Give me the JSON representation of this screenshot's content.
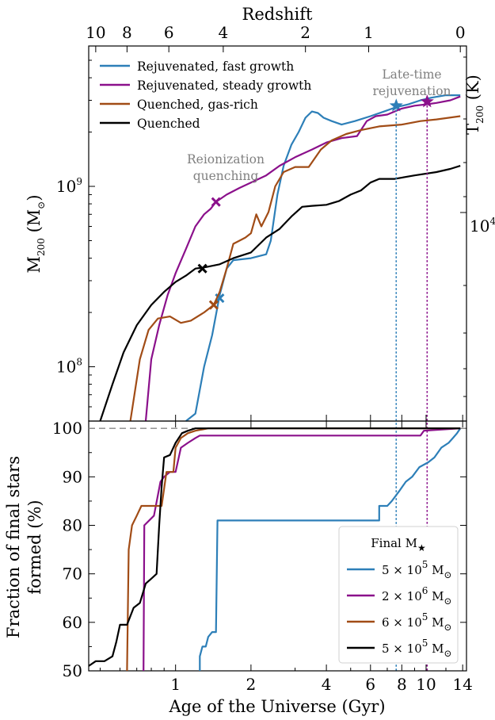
{
  "chart_data": [
    {
      "type": "line",
      "panel": "top",
      "top_axis_label": "Redshift",
      "top_ticks": [
        "10",
        "8",
        "6",
        "4",
        "2",
        "1",
        "0"
      ],
      "ylabel_main": "M",
      "ylabel_sub": "200",
      "ylabel_unit_open": " (M",
      "ylabel_unit_sub": "⊙",
      "ylabel_unit_close": ")",
      "ylabel_right_main": "T",
      "ylabel_right_sub": "200",
      "ylabel_right_unit": " (K)",
      "y_log": true,
      "ylim": [
        50000000.0,
        6000000000.0
      ],
      "y_ticks": [
        {
          "base": "10",
          "exp": "8"
        },
        {
          "base": "10",
          "exp": "9"
        }
      ],
      "right_ticks": [
        {
          "base": "10",
          "exp": "4"
        }
      ],
      "xlim": [
        0.45,
        14.5
      ],
      "x_log": true,
      "annotations": [
        "Reionization",
        "quenching",
        "Late-time",
        "rejuvenation"
      ],
      "series": [
        {
          "name": "Rejuvenated, fast growth",
          "color": "#2d7fb8",
          "points": [
            [
              1.1,
              50000000.0
            ],
            [
              1.2,
              55000000.0
            ],
            [
              1.3,
              100000000.0
            ],
            [
              1.4,
              150000000.0
            ],
            [
              1.5,
              250000000.0
            ],
            [
              1.6,
              350000000.0
            ],
            [
              1.7,
              390000000.0
            ],
            [
              2.0,
              400000000.0
            ],
            [
              2.3,
              420000000.0
            ],
            [
              2.4,
              500000000.0
            ],
            [
              2.55,
              900000000.0
            ],
            [
              2.7,
              1300000000.0
            ],
            [
              2.9,
              1700000000.0
            ],
            [
              3.1,
              2000000000.0
            ],
            [
              3.3,
              2400000000.0
            ],
            [
              3.5,
              2600000000.0
            ],
            [
              3.7,
              2550000000.0
            ],
            [
              3.9,
              2400000000.0
            ],
            [
              4.2,
              2300000000.0
            ],
            [
              4.6,
              2200000000.0
            ],
            [
              5.2,
              2300000000.0
            ],
            [
              6.0,
              2450000000.0
            ],
            [
              6.8,
              2600000000.0
            ],
            [
              7.6,
              2750000000.0
            ],
            [
              8.5,
              2850000000.0
            ],
            [
              9.5,
              3000000000.0
            ],
            [
              10.5,
              3100000000.0
            ],
            [
              12,
              3200000000.0
            ],
            [
              13.7,
              3200000000.0
            ]
          ],
          "quench_marker": [
            1.5,
            240000000.0
          ],
          "rejuv_marker": [
            7.6,
            2800000000.0
          ]
        },
        {
          "name": "Rejuvenated, steady growth",
          "color": "#8b108b",
          "points": [
            [
              0.76,
              50000000.0
            ],
            [
              0.8,
              110000000.0
            ],
            [
              0.86,
              170000000.0
            ],
            [
              0.93,
              250000000.0
            ],
            [
              1.0,
              330000000.0
            ],
            [
              1.1,
              450000000.0
            ],
            [
              1.2,
              600000000.0
            ],
            [
              1.3,
              700000000.0
            ],
            [
              1.38,
              750000000.0
            ],
            [
              1.45,
              820000000.0
            ],
            [
              1.6,
              900000000.0
            ],
            [
              1.8,
              980000000.0
            ],
            [
              2.0,
              1050000000.0
            ],
            [
              2.3,
              1150000000.0
            ],
            [
              2.6,
              1300000000.0
            ],
            [
              3.0,
              1450000000.0
            ],
            [
              3.5,
              1600000000.0
            ],
            [
              4.0,
              1750000000.0
            ],
            [
              4.6,
              1850000000.0
            ],
            [
              5.3,
              1900000000.0
            ],
            [
              5.8,
              2300000000.0
            ],
            [
              6.3,
              2450000000.0
            ],
            [
              7.0,
              2500000000.0
            ],
            [
              8.0,
              2700000000.0
            ],
            [
              9.0,
              2800000000.0
            ],
            [
              10.0,
              2850000000.0
            ],
            [
              11.0,
              2900000000.0
            ],
            [
              12.5,
              3000000000.0
            ],
            [
              13.7,
              3150000000.0
            ]
          ],
          "quench_marker": [
            1.45,
            820000000.0
          ],
          "rejuv_marker": [
            10.1,
            2950000000.0
          ]
        },
        {
          "name": "Quenched, gas-rich",
          "color": "#a14c16",
          "points": [
            [
              0.66,
              50000000.0
            ],
            [
              0.72,
              110000000.0
            ],
            [
              0.78,
              160000000.0
            ],
            [
              0.85,
              185000000.0
            ],
            [
              0.95,
              190000000.0
            ],
            [
              1.05,
              175000000.0
            ],
            [
              1.15,
              180000000.0
            ],
            [
              1.3,
              200000000.0
            ],
            [
              1.42,
              220000000.0
            ],
            [
              1.5,
              260000000.0
            ],
            [
              1.6,
              350000000.0
            ],
            [
              1.7,
              480000000.0
            ],
            [
              1.8,
              500000000.0
            ],
            [
              1.9,
              520000000.0
            ],
            [
              2.0,
              550000000.0
            ],
            [
              2.1,
              700000000.0
            ],
            [
              2.2,
              600000000.0
            ],
            [
              2.35,
              720000000.0
            ],
            [
              2.5,
              1000000000.0
            ],
            [
              2.7,
              1200000000.0
            ],
            [
              3.0,
              1280000000.0
            ],
            [
              3.4,
              1280000000.0
            ],
            [
              3.8,
              1600000000.0
            ],
            [
              4.2,
              1800000000.0
            ],
            [
              4.8,
              1950000000.0
            ],
            [
              5.5,
              2050000000.0
            ],
            [
              6.5,
              2150000000.0
            ],
            [
              8.0,
              2200000000.0
            ],
            [
              9.5,
              2300000000.0
            ],
            [
              11,
              2350000000.0
            ],
            [
              13.7,
              2450000000.0
            ]
          ],
          "quench_marker": [
            1.42,
            220000000.0
          ]
        },
        {
          "name": "Quenched",
          "color": "#000000",
          "points": [
            [
              0.5,
              50000000.0
            ],
            [
              0.56,
              80000000.0
            ],
            [
              0.62,
              120000000.0
            ],
            [
              0.7,
              170000000.0
            ],
            [
              0.8,
              220000000.0
            ],
            [
              0.9,
              260000000.0
            ],
            [
              1.0,
              295000000.0
            ],
            [
              1.1,
              320000000.0
            ],
            [
              1.2,
              350000000.0
            ],
            [
              1.3,
              355000000.0
            ],
            [
              1.5,
              370000000.0
            ],
            [
              1.7,
              400000000.0
            ],
            [
              2.0,
              430000000.0
            ],
            [
              2.3,
              520000000.0
            ],
            [
              2.6,
              580000000.0
            ],
            [
              2.9,
              680000000.0
            ],
            [
              3.2,
              770000000.0
            ],
            [
              3.5,
              780000000.0
            ],
            [
              4.0,
              790000000.0
            ],
            [
              4.5,
              830000000.0
            ],
            [
              5.0,
              900000000.0
            ],
            [
              5.5,
              950000000.0
            ],
            [
              6.0,
              1050000000.0
            ],
            [
              6.5,
              1100000000.0
            ],
            [
              7.5,
              1100000000.0
            ],
            [
              9,
              1150000000.0
            ],
            [
              11,
              1200000000.0
            ],
            [
              12.5,
              1250000000.0
            ],
            [
              13.7,
              1300000000.0
            ]
          ],
          "quench_marker": [
            1.28,
            350000000.0
          ]
        }
      ]
    },
    {
      "type": "line",
      "panel": "bottom",
      "xlabel": "Age of the Universe (Gyr)",
      "ylabel_line1": "Fraction of final stars",
      "ylabel_line2": "formed (%)",
      "x_log": true,
      "xlim": [
        0.45,
        14.5
      ],
      "ylim": [
        50,
        101.5
      ],
      "x_ticks": [
        "1",
        "2",
        "4",
        "6",
        "8",
        "10",
        "14"
      ],
      "y_ticks": [
        "50",
        "60",
        "70",
        "80",
        "90",
        "100"
      ],
      "reference_line": 100,
      "legend_title_main": "Final M",
      "legend_title_sub": "★",
      "legend_unit": "M",
      "legend_unit_sub": "⊙",
      "series": [
        {
          "name_mantissa": "5",
          "name_exp": "5",
          "color": "#2d7fb8",
          "points": [
            [
              1.25,
              50
            ],
            [
              1.25,
              53
            ],
            [
              1.28,
              55
            ],
            [
              1.32,
              55
            ],
            [
              1.35,
              57
            ],
            [
              1.4,
              58
            ],
            [
              1.45,
              58
            ],
            [
              1.47,
              81
            ],
            [
              6.5,
              81
            ],
            [
              6.5,
              84
            ],
            [
              7.0,
              84
            ],
            [
              7.3,
              85
            ],
            [
              7.8,
              87
            ],
            [
              8.3,
              89
            ],
            [
              8.8,
              90
            ],
            [
              9.4,
              92
            ],
            [
              10.2,
              93
            ],
            [
              10.8,
              94
            ],
            [
              11.5,
              96
            ],
            [
              12.3,
              97
            ],
            [
              12.8,
              98
            ],
            [
              13.3,
              99
            ],
            [
              13.7,
              100
            ]
          ]
        },
        {
          "name_mantissa": "2",
          "name_exp": "6",
          "color": "#8b108b",
          "points": [
            [
              0.745,
              50
            ],
            [
              0.75,
              80
            ],
            [
              0.82,
              82
            ],
            [
              0.87,
              89
            ],
            [
              0.9,
              90
            ],
            [
              0.95,
              91
            ],
            [
              1.0,
              91
            ],
            [
              1.05,
              96
            ],
            [
              1.12,
              97
            ],
            [
              1.2,
              98
            ],
            [
              1.25,
              98.5
            ],
            [
              9.5,
              98.5
            ],
            [
              9.8,
              99.5
            ],
            [
              13.7,
              100
            ]
          ]
        },
        {
          "name_mantissa": "6",
          "name_exp": "5",
          "color": "#a14c16",
          "points": [
            [
              0.64,
              50
            ],
            [
              0.65,
              75
            ],
            [
              0.67,
              80
            ],
            [
              0.7,
              82
            ],
            [
              0.73,
              84
            ],
            [
              0.8,
              84
            ],
            [
              0.88,
              84
            ],
            [
              0.92,
              91
            ],
            [
              0.98,
              91
            ],
            [
              1.0,
              96
            ],
            [
              1.05,
              98
            ],
            [
              1.12,
              99
            ],
            [
              1.2,
              99.5
            ],
            [
              1.35,
              100
            ],
            [
              13.7,
              100
            ]
          ]
        },
        {
          "name_mantissa": "5",
          "name_exp": "5",
          "color": "#000000",
          "points": [
            [
              0.45,
              51
            ],
            [
              0.48,
              52
            ],
            [
              0.52,
              52
            ],
            [
              0.56,
              53
            ],
            [
              0.58,
              56
            ],
            [
              0.6,
              59.5
            ],
            [
              0.64,
              59.5
            ],
            [
              0.68,
              63
            ],
            [
              0.72,
              64
            ],
            [
              0.76,
              68
            ],
            [
              0.8,
              69
            ],
            [
              0.84,
              70
            ],
            [
              0.86,
              80
            ],
            [
              0.88,
              88
            ],
            [
              0.9,
              94
            ],
            [
              0.95,
              94.5
            ],
            [
              1.0,
              97
            ],
            [
              1.06,
              99
            ],
            [
              1.12,
              99.5
            ],
            [
              1.2,
              100
            ],
            [
              13.7,
              100
            ]
          ]
        }
      ]
    }
  ]
}
